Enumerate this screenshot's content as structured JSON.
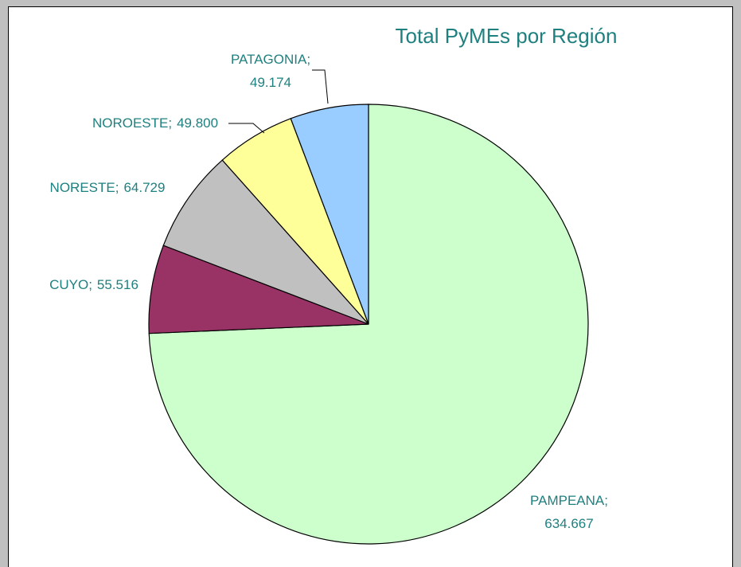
{
  "chart_data": {
    "type": "pie",
    "title": "Total PyMEs por Región",
    "categories": [
      "PAMPEANA;",
      "CUYO;",
      "NORESTE;",
      "NOROESTE;",
      "PATAGONIA;"
    ],
    "values": [
      634667,
      55516,
      64729,
      49800,
      49174
    ],
    "value_labels": [
      "634.667",
      "55.516",
      "64.729",
      "49.800",
      "49.174"
    ],
    "colors": [
      "#ccffcc",
      "#993366",
      "#c0c0c0",
      "#ffff99",
      "#99ccff"
    ]
  }
}
